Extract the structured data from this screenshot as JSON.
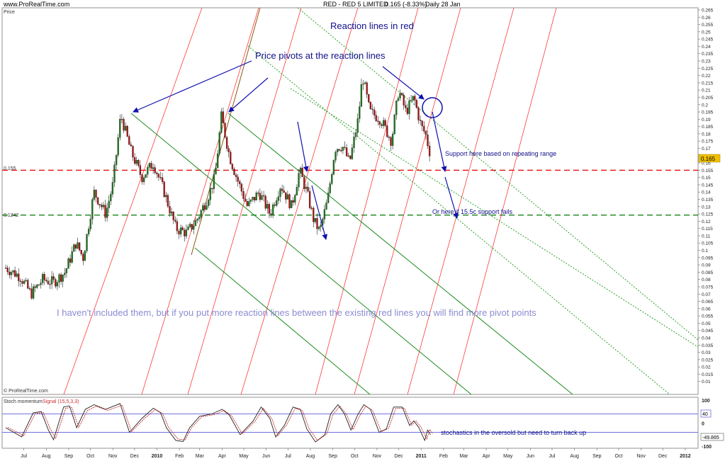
{
  "header": {
    "site": "www.ProRealTime.com",
    "instrument": "RED - RED 5 LIMITED",
    "quote": "0.165 (-8.33%)",
    "period": "Daily 28 Jan",
    "price_label": "Price",
    "watermark": "© ProRealTime.com"
  },
  "annotations": {
    "reaction_title": "Reaction lines in red",
    "pivots": "Price pivots at the reaction lines",
    "note": "I haven't included them, but if you put more reaction lines between the existing red lines you will find more pivot points",
    "support": "Support here based on repeating range",
    "fallback": "Or here if 15.5c support fails",
    "stoch_note": "stochastics in the oversold but need to turn back up"
  },
  "colors": {
    "reaction_line": "#ff2020",
    "green_channel": "#1e8c1e",
    "green_dotted": "#28a028",
    "arrow": "#1010b0",
    "annotation_text": "#10108a",
    "note_text": "#8c8cd2",
    "support_red": "#e60000",
    "support_green": "#007800",
    "stoch_line": "#c01010",
    "stoch_band": "#7070e0",
    "price_tag": "#f0c000"
  },
  "chart_data": [
    {
      "type": "candlestick",
      "title": "RED - RED 5 LIMITED 0.165 (-8.33%) Daily 28 Jan",
      "ylabel": "Price",
      "ylim": [
        0.005,
        0.265
      ],
      "y_ticks": [
        "0.265",
        "0.26",
        "0.255",
        "0.25",
        "0.245",
        "0.24",
        "0.235",
        "0.23",
        "0.225",
        "0.22",
        "0.215",
        "0.21",
        "0.205",
        "0.2",
        "0.195",
        "0.19",
        "0.185",
        "0.18",
        "0.175",
        "0.17",
        "0.165",
        "0.16",
        "0.155",
        "0.15",
        "0.145",
        "0.14",
        "0.135",
        "0.13",
        "0.125",
        "0.12",
        "0.115",
        "0.11",
        "0.105",
        "0.1",
        "0.095",
        "0.09",
        "0.085",
        "0.08",
        "0.075",
        "0.07",
        "0.065",
        "0.06",
        "0.055",
        "0.05",
        "0.045",
        "0.04",
        "0.035",
        "0.03",
        "0.025",
        "0.02",
        "0.015",
        "0.01"
      ],
      "x_ticks": [
        "Jul",
        "Aug",
        "Sep",
        "Oct",
        "Nov",
        "Dec",
        "2010",
        "Feb",
        "Mar",
        "Apr",
        "May",
        "Jun",
        "Jul",
        "Aug",
        "Sep",
        "Oct",
        "Nov",
        "Dec",
        "2011",
        "Feb",
        "Mar",
        "Apr",
        "May",
        "Jun",
        "Jul",
        "Aug",
        "Sep",
        "Oct",
        "Nov",
        "Dec",
        "2012"
      ],
      "last_price_tag": "0.165",
      "support_levels": [
        {
          "label": "0.155",
          "value": 0.155,
          "color": "red"
        },
        {
          "label": "0.1242",
          "value": 0.1242,
          "color": "green"
        }
      ],
      "close_path": [
        {
          "date": "2009-06-20",
          "close": 0.088
        },
        {
          "date": "2009-07-10",
          "close": 0.082
        },
        {
          "date": "2009-07-25",
          "close": 0.07
        },
        {
          "date": "2009-08-10",
          "close": 0.08
        },
        {
          "date": "2009-08-25",
          "close": 0.078
        },
        {
          "date": "2009-09-10",
          "close": 0.085
        },
        {
          "date": "2009-09-25",
          "close": 0.105
        },
        {
          "date": "2009-10-05",
          "close": 0.095
        },
        {
          "date": "2009-10-20",
          "close": 0.14
        },
        {
          "date": "2009-11-05",
          "close": 0.125
        },
        {
          "date": "2009-11-15",
          "close": 0.145
        },
        {
          "date": "2009-11-26",
          "close": 0.193
        },
        {
          "date": "2009-12-10",
          "close": 0.168
        },
        {
          "date": "2009-12-25",
          "close": 0.15
        },
        {
          "date": "2010-01-10",
          "close": 0.16
        },
        {
          "date": "2010-01-25",
          "close": 0.14
        },
        {
          "date": "2010-02-10",
          "close": 0.115
        },
        {
          "date": "2010-02-25",
          "close": 0.112
        },
        {
          "date": "2010-03-10",
          "close": 0.12
        },
        {
          "date": "2010-03-25",
          "close": 0.135
        },
        {
          "date": "2010-04-05",
          "close": 0.15
        },
        {
          "date": "2010-04-14",
          "close": 0.192
        },
        {
          "date": "2010-04-25",
          "close": 0.165
        },
        {
          "date": "2010-05-05",
          "close": 0.15
        },
        {
          "date": "2010-05-20",
          "close": 0.13
        },
        {
          "date": "2010-06-05",
          "close": 0.14
        },
        {
          "date": "2010-06-20",
          "close": 0.125
        },
        {
          "date": "2010-07-05",
          "close": 0.145
        },
        {
          "date": "2010-07-20",
          "close": 0.13
        },
        {
          "date": "2010-07-31",
          "close": 0.155
        },
        {
          "date": "2010-08-10",
          "close": 0.14
        },
        {
          "date": "2010-08-20",
          "close": 0.12
        },
        {
          "date": "2010-08-28",
          "close": 0.113
        },
        {
          "date": "2010-09-08",
          "close": 0.135
        },
        {
          "date": "2010-09-18",
          "close": 0.17
        },
        {
          "date": "2010-09-28",
          "close": 0.172
        },
        {
          "date": "2010-10-08",
          "close": 0.16
        },
        {
          "date": "2010-10-20",
          "close": 0.19
        },
        {
          "date": "2010-10-26",
          "close": 0.22
        },
        {
          "date": "2010-11-05",
          "close": 0.195
        },
        {
          "date": "2010-11-20",
          "close": 0.19
        },
        {
          "date": "2010-12-05",
          "close": 0.175
        },
        {
          "date": "2010-12-15",
          "close": 0.21
        },
        {
          "date": "2010-12-25",
          "close": 0.195
        },
        {
          "date": "2011-01-05",
          "close": 0.205
        },
        {
          "date": "2011-01-15",
          "close": 0.185
        },
        {
          "date": "2011-01-21",
          "close": 0.18
        },
        {
          "date": "2011-01-28",
          "close": 0.165
        }
      ],
      "indicator": {
        "name": "Stoch momentum",
        "signal_label": "Signal (15,5,3,3)",
        "ylim": [
          -100,
          100
        ],
        "y_ticks": [
          "100",
          "0",
          "-100"
        ],
        "bands": [
          40,
          -40
        ],
        "band_tag": "40",
        "last_value": "-49.865",
        "path": [
          {
            "date": "2009-06-20",
            "value": -20
          },
          {
            "date": "2009-07-01",
            "value": -40
          },
          {
            "date": "2009-07-12",
            "value": -60
          },
          {
            "date": "2009-07-28",
            "value": 45
          },
          {
            "date": "2009-08-08",
            "value": 50
          },
          {
            "date": "2009-08-18",
            "value": -30
          },
          {
            "date": "2009-08-25",
            "value": -72
          },
          {
            "date": "2009-09-08",
            "value": 70
          },
          {
            "date": "2009-09-16",
            "value": 75
          },
          {
            "date": "2009-09-26",
            "value": -20
          },
          {
            "date": "2009-10-08",
            "value": 60
          },
          {
            "date": "2009-10-20",
            "value": 80
          },
          {
            "date": "2009-11-05",
            "value": 60
          },
          {
            "date": "2009-11-25",
            "value": 85
          },
          {
            "date": "2009-12-08",
            "value": -40
          },
          {
            "date": "2009-12-25",
            "value": 20
          },
          {
            "date": "2010-01-10",
            "value": 65
          },
          {
            "date": "2010-01-20",
            "value": 45
          },
          {
            "date": "2010-01-28",
            "value": -20
          },
          {
            "date": "2010-02-10",
            "value": -75
          },
          {
            "date": "2010-02-20",
            "value": -80
          },
          {
            "date": "2010-03-01",
            "value": -20
          },
          {
            "date": "2010-03-15",
            "value": 30
          },
          {
            "date": "2010-04-01",
            "value": 40
          },
          {
            "date": "2010-04-15",
            "value": 60
          },
          {
            "date": "2010-04-25",
            "value": 35
          },
          {
            "date": "2010-05-10",
            "value": -50
          },
          {
            "date": "2010-05-28",
            "value": 10
          },
          {
            "date": "2010-06-08",
            "value": 70
          },
          {
            "date": "2010-06-20",
            "value": 20
          },
          {
            "date": "2010-06-28",
            "value": -60
          },
          {
            "date": "2010-07-10",
            "value": -10
          },
          {
            "date": "2010-07-22",
            "value": 70
          },
          {
            "date": "2010-08-01",
            "value": 60
          },
          {
            "date": "2010-08-10",
            "value": -25
          },
          {
            "date": "2010-08-22",
            "value": -82
          },
          {
            "date": "2010-09-04",
            "value": -50
          },
          {
            "date": "2010-09-12",
            "value": 40
          },
          {
            "date": "2010-09-22",
            "value": 80
          },
          {
            "date": "2010-10-01",
            "value": 40
          },
          {
            "date": "2010-10-10",
            "value": -30
          },
          {
            "date": "2010-10-20",
            "value": 40
          },
          {
            "date": "2010-10-28",
            "value": 80
          },
          {
            "date": "2010-11-06",
            "value": 60
          },
          {
            "date": "2010-11-18",
            "value": -40
          },
          {
            "date": "2010-11-28",
            "value": -25
          },
          {
            "date": "2010-12-08",
            "value": 70
          },
          {
            "date": "2010-12-20",
            "value": 70
          },
          {
            "date": "2010-12-30",
            "value": -10
          },
          {
            "date": "2011-01-05",
            "value": 10
          },
          {
            "date": "2011-01-12",
            "value": -20
          },
          {
            "date": "2011-01-20",
            "value": -75
          },
          {
            "date": "2011-01-24",
            "value": -30
          },
          {
            "date": "2011-01-28",
            "value": -50
          }
        ]
      }
    }
  ]
}
